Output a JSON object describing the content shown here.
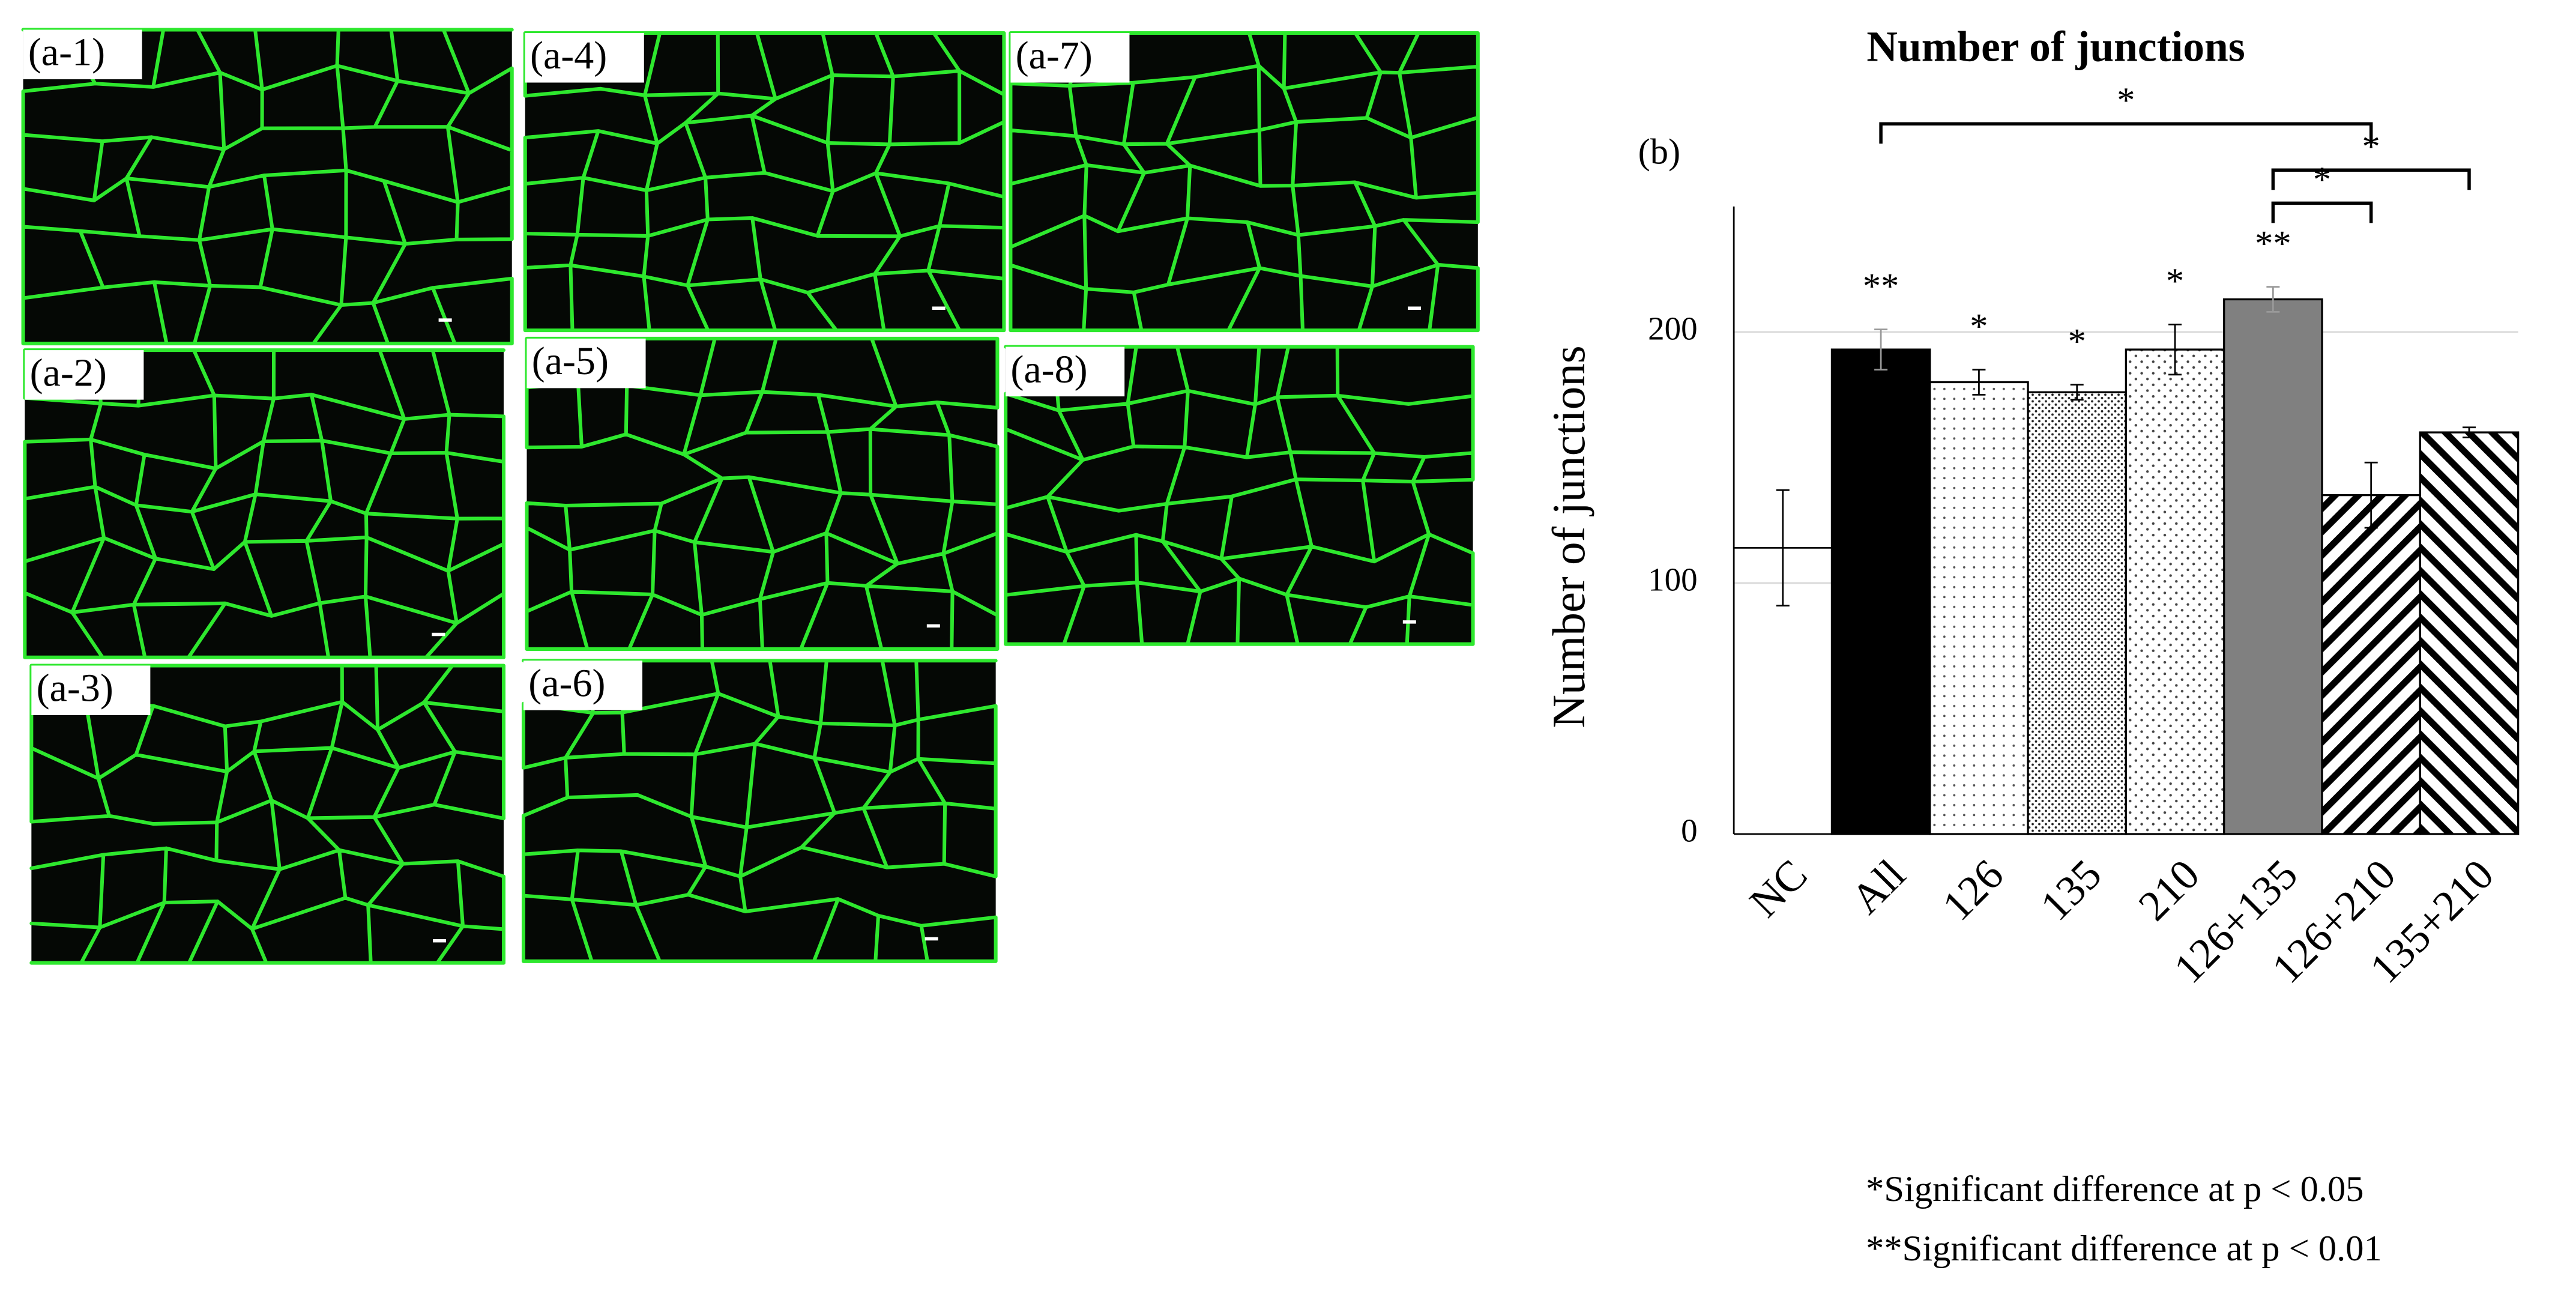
{
  "panels": [
    "(a-1)",
    "(a-2)",
    "(a-3)",
    "(a-4)",
    "(a-5)",
    "(a-6)",
    "(a-7)",
    "(a-8)"
  ],
  "chart_data": {
    "type": "bar",
    "title": "Number of junctions",
    "panel_label": "(b)",
    "y_label": "Number of junctions",
    "categories": [
      "NC",
      "All",
      "126",
      "135",
      "210",
      "126+135",
      "126+210",
      "135+210"
    ],
    "values": [
      114,
      193,
      180,
      176,
      193,
      213,
      135,
      160
    ],
    "errors": [
      23,
      8,
      5,
      3,
      10,
      5,
      13,
      2
    ],
    "patterns": [
      "none",
      "black",
      "sparse-dots",
      "dense-dots",
      "dots",
      "gray",
      "diag-right",
      "diag-left"
    ],
    "significance": [
      null,
      "**",
      "*",
      "*",
      "*",
      "**",
      null,
      null
    ],
    "brackets": [
      {
        "start": "All",
        "end": "126+210",
        "label": "*"
      },
      {
        "start": "126+135",
        "end": "135+210",
        "label": "*"
      },
      {
        "start": "126+135",
        "end": "126+210",
        "label": "*"
      }
    ],
    "ylim": [
      0,
      250
    ],
    "yticks": [
      0,
      100,
      200
    ],
    "grid": true,
    "footnotes": [
      "*Significant  difference at p < 0.05",
      "**Significant  difference at p < 0.01"
    ]
  }
}
